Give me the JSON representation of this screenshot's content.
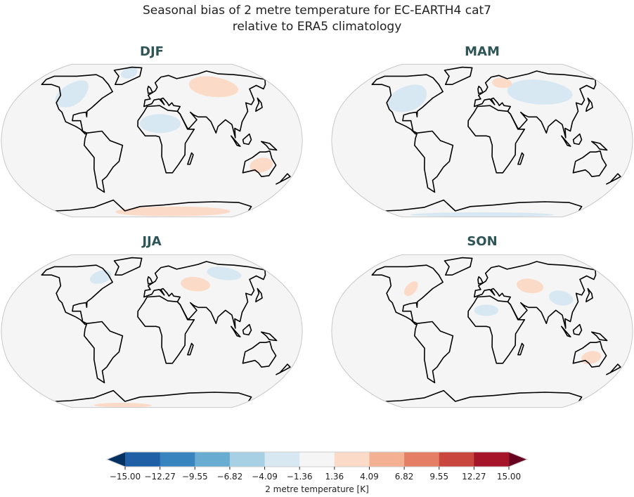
{
  "title_line1": "Seasonal bias of 2 metre temperature for EC-EARTH4 cat7",
  "title_line2": "relative to ERA5 climatology",
  "panels": [
    {
      "label": "DJF",
      "anomalies": [
        {
          "lon": 90,
          "lat": 58,
          "rlon": 35,
          "rlat": 12,
          "bias": 2.5
        },
        {
          "lon": -110,
          "lat": 50,
          "rlon": 20,
          "rlat": 15,
          "bias": -2.5
        },
        {
          "lon": 10,
          "lat": 18,
          "rlon": 25,
          "rlat": 10,
          "bias": -2.5
        },
        {
          "lon": 135,
          "lat": -26,
          "rlon": 14,
          "rlat": 8,
          "bias": 2.5
        },
        {
          "lon": 40,
          "lat": -80,
          "rlon": 110,
          "rlat": 8,
          "bias": 2.5
        },
        {
          "lon": -40,
          "lat": 75,
          "rlon": 14,
          "rlat": 8,
          "bias": -2.5
        }
      ]
    },
    {
      "label": "MAM",
      "anomalies": [
        {
          "lon": -100,
          "lat": 45,
          "rlon": 25,
          "rlat": 15,
          "bias": -3.5
        },
        {
          "lon": 80,
          "lat": 52,
          "rlon": 45,
          "rlat": 14,
          "bias": -2.5
        },
        {
          "lon": 0,
          "lat": -85,
          "rlon": 150,
          "rlat": 5,
          "bias": -2.5
        },
        {
          "lon": 30,
          "lat": 62,
          "rlon": 15,
          "rlat": 6,
          "bias": 2.5
        }
      ]
    },
    {
      "label": "JJA",
      "anomalies": [
        {
          "lon": 60,
          "lat": 50,
          "rlon": 20,
          "rlat": 8,
          "bias": 2.5
        },
        {
          "lon": -75,
          "lat": 58,
          "rlon": 15,
          "rlat": 8,
          "bias": -2.5
        },
        {
          "lon": 110,
          "lat": 62,
          "rlon": 25,
          "rlat": 8,
          "bias": -2.5
        },
        {
          "lon": -60,
          "lat": -85,
          "rlon": 60,
          "rlat": 5,
          "bias": 2.5
        }
      ]
    },
    {
      "label": "SON",
      "anomalies": [
        {
          "lon": 65,
          "lat": 48,
          "rlon": 18,
          "rlat": 8,
          "bias": 2.5
        },
        {
          "lon": -95,
          "lat": 45,
          "rlon": 8,
          "rlat": 8,
          "bias": 2.5
        },
        {
          "lon": 135,
          "lat": -28,
          "rlon": 12,
          "rlat": 7,
          "bias": 2.5
        },
        {
          "lon": 5,
          "lat": 22,
          "rlon": 15,
          "rlat": 6,
          "bias": -2.5
        },
        {
          "lon": 100,
          "lat": 35,
          "rlon": 15,
          "rlat": 8,
          "bias": -2.5
        }
      ]
    }
  ],
  "colorbar": {
    "label": "2 metre temperature [K]",
    "ticks": [
      "−15.00",
      "−12.27",
      "−9.55",
      "−6.82",
      "−4.09",
      "−1.36",
      "1.36",
      "4.09",
      "6.82",
      "9.55",
      "12.27",
      "15.00"
    ],
    "levels": [
      -15,
      -12.27,
      -9.55,
      -6.82,
      -4.09,
      -1.36,
      1.36,
      4.09,
      6.82,
      9.55,
      12.27,
      15
    ],
    "colors": [
      "#1f5fa6",
      "#3884bf",
      "#68acd2",
      "#a8d0e4",
      "#d8e8f2",
      "#f5f5f5",
      "#fbdac8",
      "#f4b092",
      "#e47f65",
      "#c9463f",
      "#a51429"
    ],
    "under_color": "#053062",
    "over_color": "#67001f"
  }
}
